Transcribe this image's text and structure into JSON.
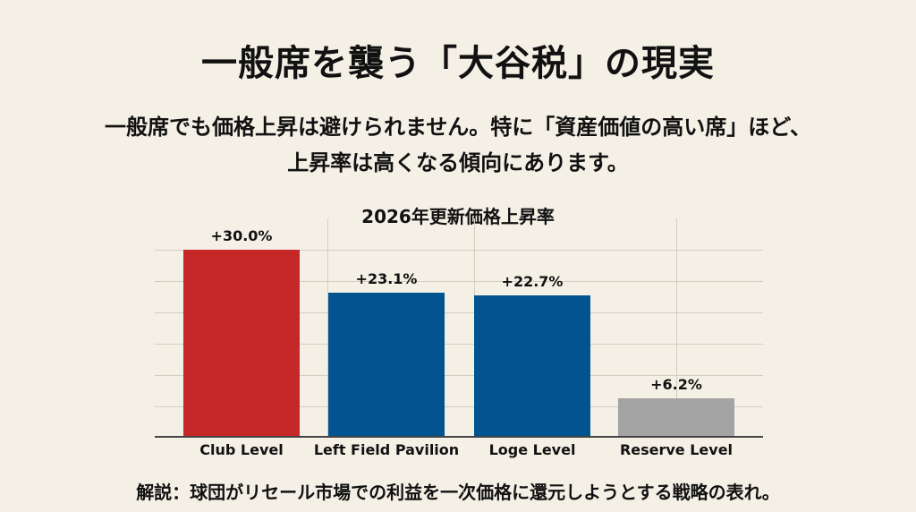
{
  "header": {
    "title": "一般席を襲う「大谷税」の現実",
    "subtitle_line1": "一般席でも価格上昇は避けられません。特に「資産価値の高い席」ほど、",
    "subtitle_line2": "上昇率は高くなる傾向にあります。"
  },
  "chart": {
    "title": "2026年更新価格上昇率",
    "bars": [
      {
        "category": "Club Level",
        "value": 30.0,
        "label": "+30.0%",
        "color": "#c62828"
      },
      {
        "category": "Left Field Pavilion",
        "value": 23.1,
        "label": "+23.1%",
        "color": "#01548f"
      },
      {
        "category": "Loge Level",
        "value": 22.7,
        "label": "+22.7%",
        "color": "#01548f"
      },
      {
        "category": "Reserve Level",
        "value": 6.2,
        "label": "+6.2%",
        "color": "#a3a3a3"
      }
    ]
  },
  "footer": {
    "note": "解説：球団がリセール市場での利益を一次価格に還元しようとする戦略の表れ。"
  },
  "chart_data": {
    "type": "bar",
    "title": "2026年更新価格上昇率",
    "categories": [
      "Club Level",
      "Left Field Pavilion",
      "Loge Level",
      "Reserve Level"
    ],
    "values": [
      30.0,
      23.1,
      22.7,
      6.2
    ],
    "data_labels": [
      "+30.0%",
      "+23.1%",
      "+22.7%",
      "+6.2%"
    ],
    "colors": [
      "#c62828",
      "#01548f",
      "#01548f",
      "#a3a3a3"
    ],
    "xlabel": "",
    "ylabel": "",
    "ylim": [
      0,
      35
    ],
    "y_unit": "%",
    "grid": true,
    "legend": "none"
  }
}
